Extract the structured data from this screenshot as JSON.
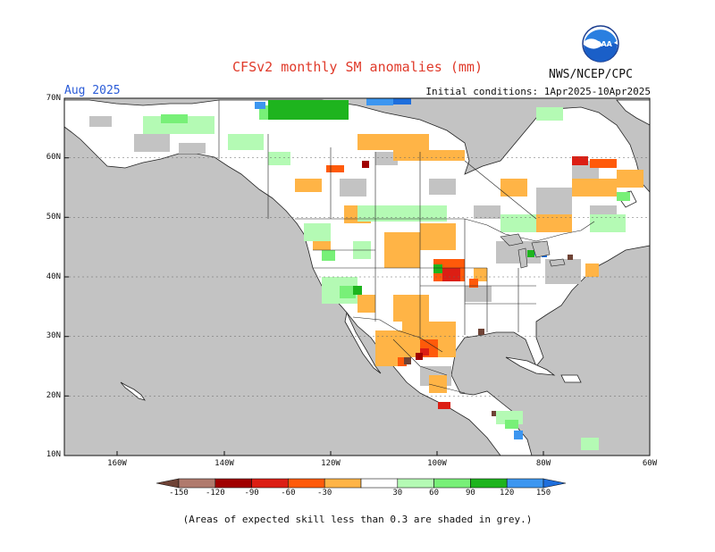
{
  "title": "CFSv2 monthly SM anomalies (mm)",
  "valid_month": "Aug 2025",
  "initial_conditions": "Initial conditions: 1Apr2025-10Apr2025",
  "agency": "NWS/NCEP/CPC",
  "logo_text": "NOAA",
  "lat_labels": [
    "70N",
    "60N",
    "50N",
    "40N",
    "30N",
    "20N",
    "10N"
  ],
  "lon_labels": [
    "160W",
    "140W",
    "120W",
    "100W",
    "80W",
    "60W"
  ],
  "legend": {
    "labels": [
      "-150",
      "-120",
      "-90",
      "-60",
      "-30",
      "30",
      "60",
      "90",
      "120",
      "150"
    ],
    "colors": [
      "#6f4336",
      "#b07a6d",
      "#a00000",
      "#dc1e14",
      "#ff5a0a",
      "#ffb446",
      "#ffffff",
      "#b4fab4",
      "#78f078",
      "#1eb41e",
      "#3c96f0",
      "#1e6edc"
    ]
  },
  "grey_color": "#c3c3c3",
  "note": "(Areas of expected skill less than 0.3 are shaded in grey.)"
}
